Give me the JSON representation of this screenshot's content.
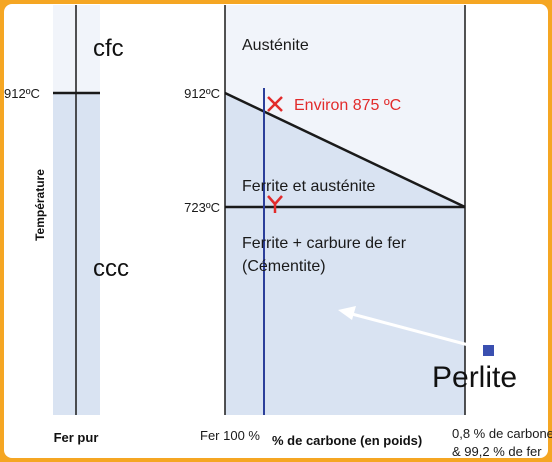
{
  "left_panel": {
    "y_axis_label": "Température",
    "x_axis_label": "Fer pur",
    "temp_tick": "912ºC",
    "upper_phase": "cfc",
    "lower_phase": "ccc"
  },
  "right_panel": {
    "ticks": {
      "upper": "912ºC",
      "lower": "723ºC"
    },
    "regions": {
      "austenite": "Austénite",
      "mixed": "Ferrite et austénite",
      "lower_line1": "Ferrite + carbure de fer",
      "lower_line2": "(Cémentite)"
    },
    "markers": {
      "x_label": "Environ 875 ºC"
    },
    "x_axis": {
      "left": "Fer 100 %",
      "title": "% de carbone (en poids)",
      "right_line1": "0,8 % de carbone",
      "right_line2": "& 99,2 % de fer"
    },
    "perlite_label": "Perlite"
  },
  "colors": {
    "background": "#f5a623",
    "upper_region": "#f1f4fa",
    "lower_region": "#d9e3f2",
    "vertical_line": "#2c3f9a",
    "marker": "#e22b2b",
    "perlite_square": "#3a4fb0",
    "arrow": "#ffffff"
  }
}
